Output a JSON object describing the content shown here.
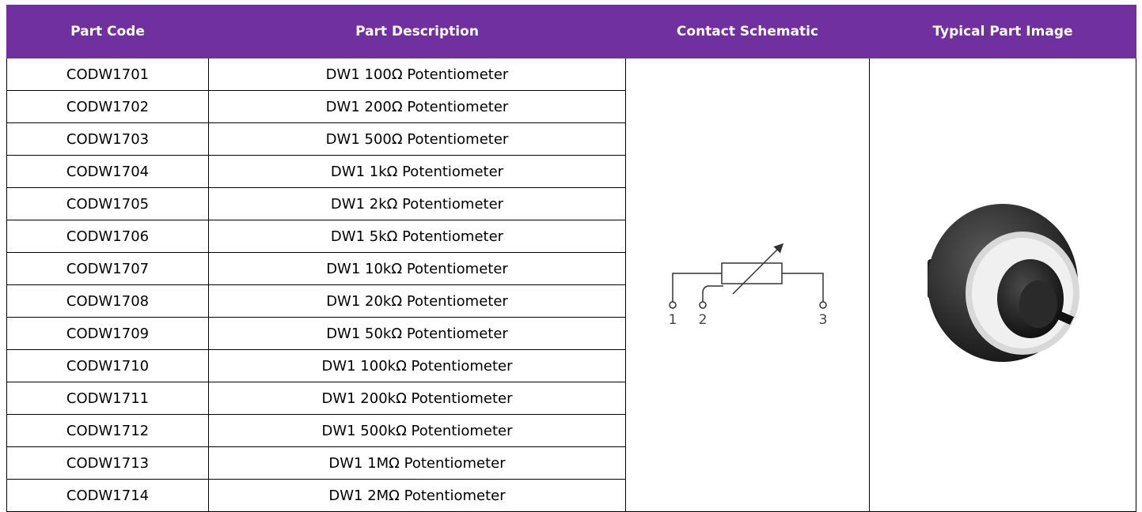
{
  "table": {
    "columns": [
      "Part Code",
      "Part Description",
      "Contact Schematic",
      "Typical Part Image"
    ],
    "rows": [
      [
        "CODW1701",
        "DW1 100Ω Potentiometer"
      ],
      [
        "CODW1702",
        "DW1 200Ω Potentiometer"
      ],
      [
        "CODW1703",
        "DW1 500Ω Potentiometer"
      ],
      [
        "CODW1704",
        "DW1 1kΩ Potentiometer"
      ],
      [
        "CODW1705",
        "DW1 2kΩ Potentiometer"
      ],
      [
        "CODW1706",
        "DW1 5kΩ Potentiometer"
      ],
      [
        "CODW1707",
        "DW1 10kΩ Potentiometer"
      ],
      [
        "CODW1708",
        "DW1 20kΩ Potentiometer"
      ],
      [
        "CODW1709",
        "DW1 50kΩ Potentiometer"
      ],
      [
        "CODW1710",
        "DW1 100kΩ Potentiometer"
      ],
      [
        "CODW1711",
        "DW1 200kΩ Potentiometer"
      ],
      [
        "CODW1712",
        "DW1 500kΩ Potentiometer"
      ],
      [
        "CODW1713",
        "DW1 1MΩ Potentiometer"
      ],
      [
        "CODW1714",
        "DW1 2MΩ Potentiometer"
      ]
    ],
    "schematic_labels": [
      "1",
      "2",
      "3"
    ]
  }
}
